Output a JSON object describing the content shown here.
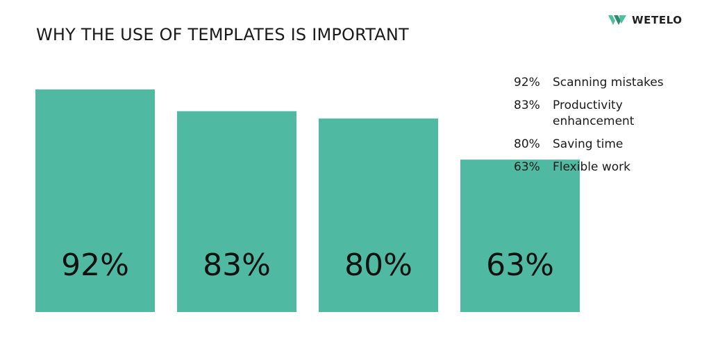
{
  "brand": {
    "name": "WETELO",
    "icon": "wetelo-logo-icon",
    "colors": [
      "#4dbfa0",
      "#2c8a70"
    ]
  },
  "chart_data": {
    "type": "bar",
    "title": "WHY THE USE OF TEMPLATES IS IMPORTANT",
    "categories": [
      "Scanning mistakes",
      "Productivity enhancement",
      "Saving time",
      "Flexible work"
    ],
    "values": [
      92,
      83,
      80,
      63
    ],
    "value_labels": [
      "92%",
      "83%",
      "80%",
      "63%"
    ],
    "unit": "%",
    "bar_color": "#4fb9a2",
    "grid": false,
    "legend_placement": "right"
  },
  "legend": [
    {
      "value": "92%",
      "label": "Scanning mistakes"
    },
    {
      "value": "83%",
      "label": "Productivity enhancement"
    },
    {
      "value": "80%",
      "label": "Saving time"
    },
    {
      "value": "63%",
      "label": "Flexible work"
    }
  ]
}
